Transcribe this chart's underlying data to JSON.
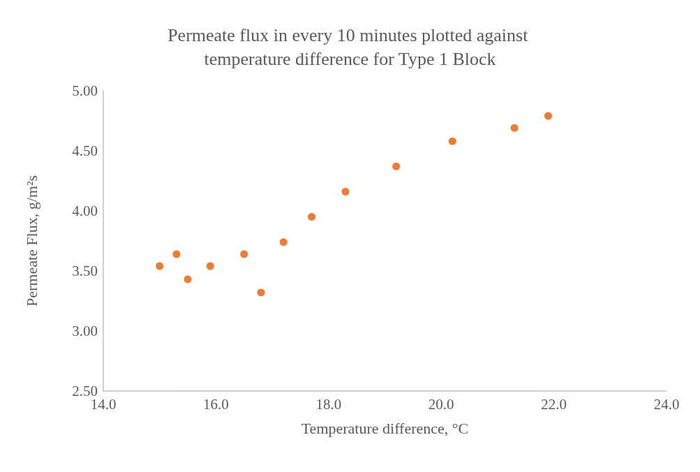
{
  "chart_data": {
    "type": "scatter",
    "title": "Permeate flux in every 10 minutes plotted against temperature difference for Type 1 Block",
    "xlabel": "Temperature difference, °C",
    "ylabel": "Permeate Flux, g/m²s",
    "x": [
      15.0,
      15.3,
      15.5,
      15.9,
      16.5,
      16.8,
      17.2,
      17.7,
      18.3,
      19.2,
      20.2,
      21.3,
      21.9
    ],
    "series": [
      {
        "color": "#ed7d31",
        "values": [
          3.54,
          3.64,
          3.43,
          3.54,
          3.64,
          3.32,
          3.74,
          3.95,
          4.16,
          4.37,
          4.58,
          4.69,
          4.79
        ]
      }
    ],
    "xlim": [
      14,
      24
    ],
    "xticks": [
      {
        "value": 14,
        "label": "14.0"
      },
      {
        "value": 16,
        "label": "16.0"
      },
      {
        "value": 18,
        "label": "18.0"
      },
      {
        "value": 20,
        "label": "20.0"
      },
      {
        "value": 22,
        "label": "22.0"
      },
      {
        "value": 24,
        "label": "24.0"
      }
    ],
    "ylim": [
      2.5,
      5
    ],
    "yticks": [
      {
        "value": 2.5,
        "label": "2.50"
      },
      {
        "value": 3,
        "label": "3.00"
      },
      {
        "value": 3.5,
        "label": "3.50"
      },
      {
        "value": 4,
        "label": "4.00"
      },
      {
        "value": 4.5,
        "label": "4.50"
      },
      {
        "value": 5,
        "label": "5.00"
      }
    ],
    "grid": false,
    "marker": "circle"
  }
}
